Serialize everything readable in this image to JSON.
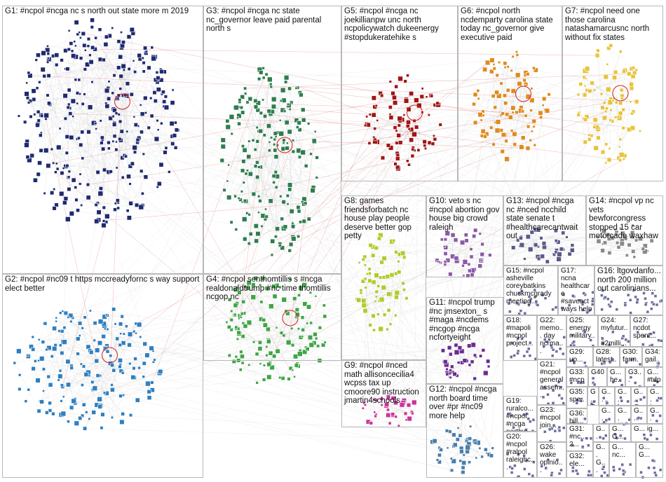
{
  "colors": {
    "edge": "#c8c8c8",
    "edge_strong": "#cc3333",
    "border": "#b8b8b8",
    "G1": "#1f2a70",
    "G2": "#2f7fc0",
    "G3": "#2e7d4f",
    "G4": "#3fa548",
    "G5": "#a01515",
    "G6": "#e08a1e",
    "G7": "#e8c33a",
    "G8": "#b0cc2c",
    "G9": "#cc3399",
    "G10": "#8a5aa6",
    "G11": "#6a2d91",
    "G12": "#4a7eaa",
    "G13": "#5a5a8a",
    "G14": "#8a8a8a",
    "other": "#6c6c9c"
  },
  "groups": [
    {
      "id": "G1",
      "label": "G1: #ncpol #ncga nc s north out state more m 2019"
    },
    {
      "id": "G2",
      "label": "G2: #ncpol #nc09 t https mccreadyfornc s way support elect better"
    },
    {
      "id": "G3",
      "label": "G3: #ncpol #ncga nc state nc_governor leave paid parental north s"
    },
    {
      "id": "G4",
      "label": "G4: #ncpol senthomtillis s #ncga realdonaldtrump #nc time thomtillis ncgop nc"
    },
    {
      "id": "G5",
      "label": "G5: #ncpol #ncga nc joekillianpw unc north ncpolicywatch dukeenergy #stopdukeratehike s"
    },
    {
      "id": "G6",
      "label": "G6: #ncpol north ncdemparty carolina state today nc_governor give executive paid"
    },
    {
      "id": "G7",
      "label": "G7: #ncpol need one those carolina natashamarcusnc north without fix states"
    },
    {
      "id": "G8",
      "label": "G8: games friendsforbatch nc house play people deserve better gop petty"
    },
    {
      "id": "G9",
      "label": "G9: #ncpol #nced math allisoncecilia4 wcpss tax up cmoore90 instruction jmartin4schools"
    },
    {
      "id": "G10",
      "label": "G10: veto s nc #ncpol abortion gov house big crowd raleigh"
    },
    {
      "id": "G11",
      "label": "G11: #ncpol trump #nc jmsexton_ s #maga #ncdems #ncgop #ncga ncfortyeight"
    },
    {
      "id": "G12",
      "label": "G12: #ncpol #ncga north board time over #pr #nc09 more help"
    },
    {
      "id": "G13",
      "label": "G13: #ncpol #ncga nc #nced ncchild state senate t #healthcarecantwait out"
    },
    {
      "id": "G14",
      "label": "G14: #ncpol vp nc vets bewforcongress stopped 15 car motorcade waxhaw"
    },
    {
      "id": "G15",
      "label": "G15: #ncpol asheville coreybatkins chuckmcgrady meeting..."
    },
    {
      "id": "G16",
      "label": "G16: ltgovdanfo... north 200 million out carolinians..."
    },
    {
      "id": "G17",
      "label": "G17: ncna healthcare #saveact ways help nc time..."
    },
    {
      "id": "G18",
      "label": "G18: #mapoli #ncpol project..."
    },
    {
      "id": "G19",
      "label": "G19: ruralco... #ncpol #ncga northw..."
    },
    {
      "id": "G20",
      "label": "G20: #ncpol #ralpol raleighc..."
    },
    {
      "id": "G21",
      "label": "G21: #ncpol general assem..."
    },
    {
      "id": "G22",
      "label": "G22: memo... day ncrma..."
    },
    {
      "id": "G23",
      "label": "G23: #ncpol join..."
    },
    {
      "id": "G24",
      "label": "G24: myfutur... #2milli..."
    },
    {
      "id": "G25",
      "label": "G25: energy military..."
    },
    {
      "id": "G26",
      "label": "G26: wake opinio..."
    },
    {
      "id": "G27",
      "label": "G27: ncdot spent..."
    },
    {
      "id": "G28",
      "label": "G28: latest..."
    },
    {
      "id": "G29",
      "label": "G29: up..."
    },
    {
      "id": "G30",
      "label": "G30: farm..."
    },
    {
      "id": "G31",
      "label": "G31: #nc... 2..."
    },
    {
      "id": "G32",
      "label": "G32: ele..."
    },
    {
      "id": "G33",
      "label": "G33: #ncp..."
    },
    {
      "id": "G34",
      "label": "G34: gail..."
    },
    {
      "id": "G35",
      "label": "G35: spe..."
    },
    {
      "id": "G36",
      "label": "G36: bill..."
    },
    {
      "id": "G37",
      "label": "G3..."
    },
    {
      "id": "G38",
      "label": "G... #tdp"
    },
    {
      "id": "G39",
      "label": "G... he..."
    },
    {
      "id": "G40",
      "label": "G40"
    },
    {
      "id": "G41",
      "label": "G... gt..."
    },
    {
      "id": "G42",
      "label": "G... G..."
    },
    {
      "id": "G43",
      "label": "G... b..."
    },
    {
      "id": "G44",
      "label": "G... in..."
    },
    {
      "id": "G45",
      "label": "G... G..."
    },
    {
      "id": "G46",
      "label": "G... hl..."
    },
    {
      "id": "G47",
      "label": "G... lif..."
    },
    {
      "id": "G48",
      "label": "G... ta..."
    },
    {
      "id": "G49",
      "label": "G... G..."
    },
    {
      "id": "G50",
      "label": "G... nc..."
    },
    {
      "id": "G51",
      "label": "G... G..."
    },
    {
      "id": "G52",
      "label": "G... ig..."
    },
    {
      "id": "G53",
      "label": "G... G..."
    },
    {
      "id": "G54",
      "label": "G... G..."
    },
    {
      "id": "G55",
      "label": "G... G..."
    }
  ]
}
